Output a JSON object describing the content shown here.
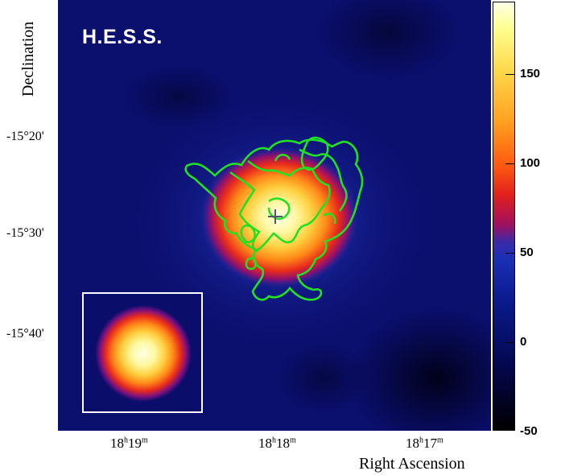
{
  "image": {
    "instrument_label": "H.E.S.S.",
    "x_axis_title": "Right Ascension",
    "y_axis_title": "Declination",
    "x_ticks": [
      {
        "h": "18",
        "m": "19"
      },
      {
        "h": "18",
        "m": "18"
      },
      {
        "h": "18",
        "m": "17"
      }
    ],
    "y_ticks": [
      "-15°20'",
      "-15°30'",
      "-15°40'"
    ],
    "colorbar_ticks": [
      "150",
      "100",
      "50",
      "0",
      "-50"
    ],
    "contour_color": "#22e022",
    "marker": "plus-marker"
  }
}
